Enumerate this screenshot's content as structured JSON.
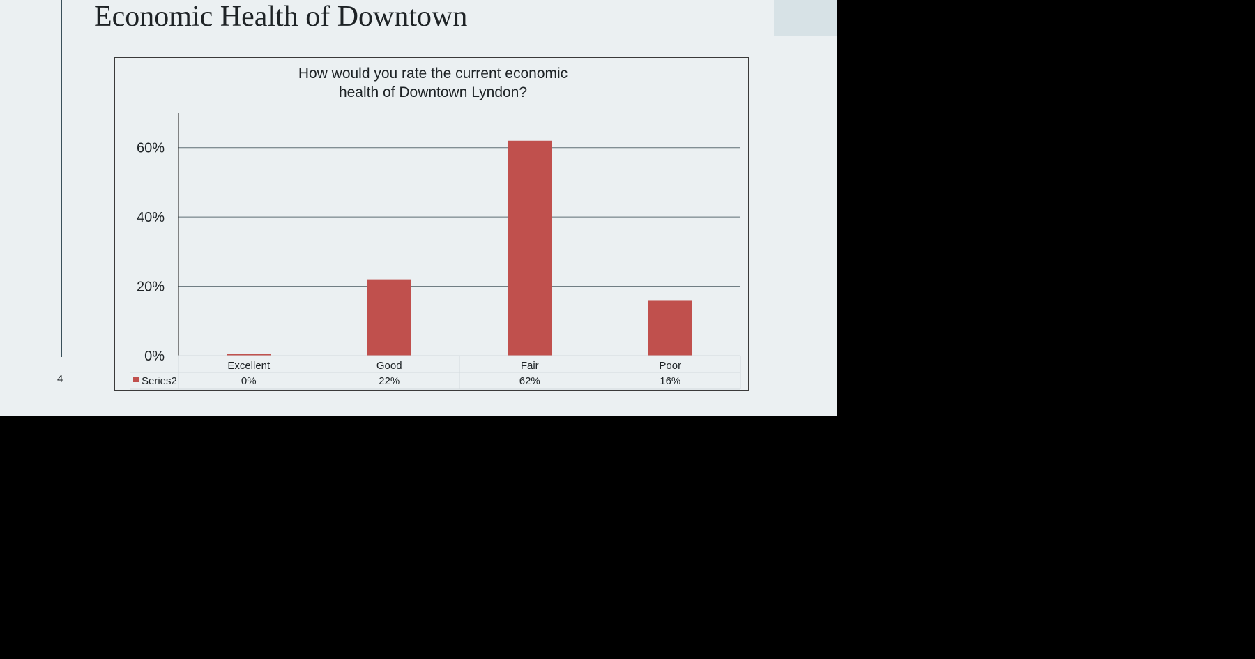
{
  "slide": {
    "title": "Economic Health of Downtown",
    "page_number": "4"
  },
  "colors": {
    "slide_background": "#EBF0F2",
    "bar": "#C0504D",
    "accent_rule": "#39505A",
    "corner_block": "#D7E2E6"
  },
  "chart_data": {
    "type": "bar",
    "title_lines": [
      "How would you rate the current economic",
      "health of Downtown Lyndon?"
    ],
    "categories": [
      "Excellent",
      "Good",
      "Fair",
      "Poor"
    ],
    "series": [
      {
        "name": "Series2",
        "values": [
          0.4,
          22,
          62,
          16
        ],
        "data_table_labels": [
          "0%",
          "22%",
          "62%",
          "16%"
        ]
      }
    ],
    "y_tick_labels": [
      "0%",
      "20%",
      "40%",
      "60%"
    ],
    "y_ticks": [
      0,
      20,
      40,
      60
    ],
    "ylim": [
      0,
      70
    ],
    "grid": true,
    "legend": "data-table-left",
    "data_table": true
  }
}
